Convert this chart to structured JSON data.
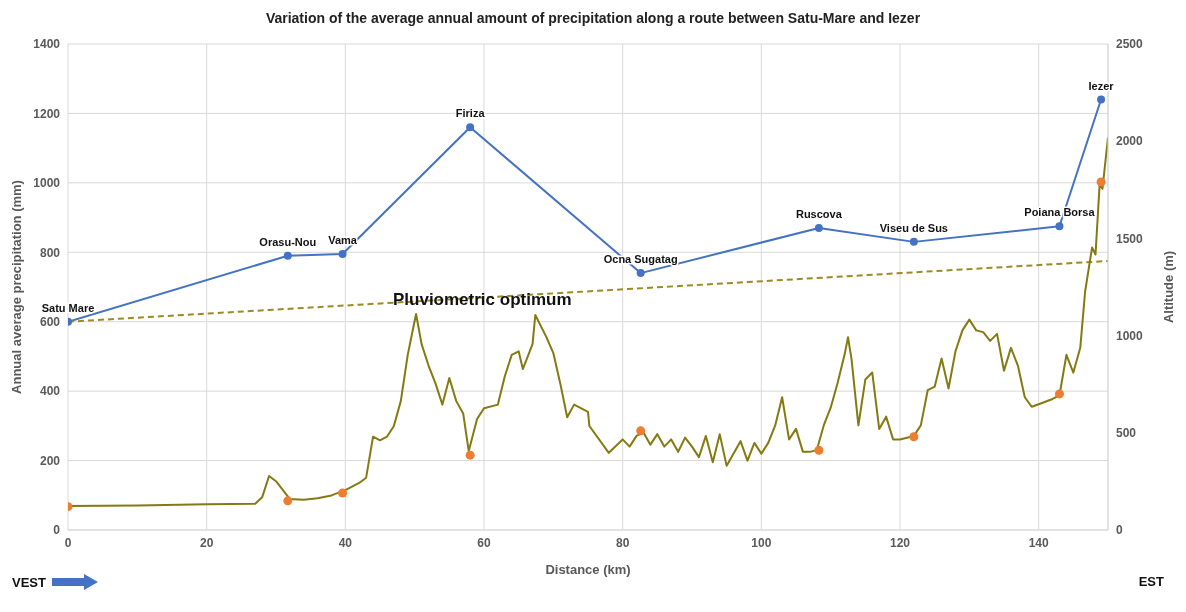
{
  "chart_data": {
    "type": "line",
    "title": "Variation of the average annual amount of precipitation along a route between Satu-Mare and Iezer",
    "xlabel": "Distance (km)",
    "ylabel": "Annual average precipitation (mm)",
    "y2label": "Altitude (m)",
    "xlim": [
      0,
      150
    ],
    "xticks": [
      0,
      20,
      40,
      60,
      80,
      100,
      120,
      140
    ],
    "ylim": [
      0,
      1400
    ],
    "yticks": [
      0,
      200,
      400,
      600,
      800,
      1000,
      1200,
      1400
    ],
    "y2lim": [
      0,
      2500
    ],
    "y2ticks": [
      0,
      500,
      1000,
      1500,
      2000,
      2500
    ],
    "grid": true,
    "series": [
      {
        "color": "#4472c4",
        "marker": "circle",
        "line_style": "solid",
        "x": [
          0,
          31.7,
          39.6,
          58,
          82.6,
          108.3,
          122,
          143,
          149
        ],
        "values": [
          600,
          790,
          795,
          1160,
          740,
          870,
          830,
          875,
          1240
        ]
      },
      {
        "type": "line",
        "color": "#9c8a22",
        "marker": "none",
        "line_style": "dashed",
        "x": [
          0,
          150
        ],
        "values": [
          600,
          775
        ]
      },
      {
        "type": "line",
        "axis": "y2",
        "color": "#857a12",
        "marker": "none",
        "line_style": "solid",
        "x": [
          0,
          10,
          20,
          27,
          28,
          29,
          30,
          31,
          32,
          34,
          36,
          38,
          40,
          42,
          43,
          44,
          45,
          46,
          47,
          48,
          49,
          50.2,
          51,
          52,
          53,
          54,
          55,
          56,
          57,
          57.8,
          59,
          60,
          62,
          63,
          64,
          65,
          65.6,
          67,
          67.4,
          69,
          70,
          71,
          72,
          73,
          75,
          75.2,
          78,
          80,
          81,
          82,
          83,
          84,
          85,
          86,
          87,
          88,
          89,
          90,
          91,
          92,
          93,
          94,
          95,
          96,
          97,
          98,
          99,
          100,
          101,
          102,
          103,
          104,
          105,
          106,
          107,
          108,
          109,
          110,
          111,
          112,
          112.5,
          113,
          114,
          115,
          116,
          117,
          118,
          119,
          120,
          122,
          123,
          124,
          125,
          126,
          127,
          128,
          129,
          130,
          131,
          132,
          133,
          134,
          135,
          136,
          137,
          138,
          139,
          140,
          142,
          143,
          144,
          145,
          146,
          146.7,
          147.7,
          148.2,
          148.8,
          149.2,
          150
        ],
        "values": [
          123,
          126,
          132,
          135,
          168,
          278,
          251,
          205,
          159,
          156,
          163,
          178,
          205,
          242,
          269,
          480,
          461,
          480,
          535,
          663,
          901,
          1111,
          956,
          846,
          754,
          645,
          782,
          663,
          599,
          406,
          571,
          626,
          645,
          791,
          901,
          919,
          828,
          956,
          1106,
          992,
          910,
          754,
          580,
          645,
          608,
          535,
          397,
          466,
          429,
          484,
          502,
          439,
          493,
          429,
          466,
          402,
          475,
          429,
          375,
          484,
          348,
          493,
          330,
          393,
          457,
          357,
          448,
          393,
          448,
          538,
          683,
          466,
          520,
          402,
          402,
          411,
          538,
          629,
          756,
          901,
          991,
          882,
          538,
          774,
          810,
          520,
          583,
          466,
          466,
          484,
          538,
          719,
          737,
          882,
          728,
          919,
          1027,
          1082,
          1027,
          1018,
          973,
          1009,
          819,
          937,
          846,
          683,
          634,
          647,
          674,
          692,
          901,
          810,
          937,
          1227,
          1453,
          1417,
          1782,
          1755,
          2019
        ]
      },
      {
        "type": "scatter",
        "axis": "y2",
        "color": "#ed7d31",
        "marker": "circle",
        "x": [
          0,
          31.7,
          39.6,
          58,
          82.6,
          108.3,
          122,
          143,
          149
        ],
        "values": [
          120,
          150,
          190,
          385,
          510,
          410,
          480,
          700,
          1790
        ]
      }
    ],
    "annotations": [
      {
        "text": "Satu Mare",
        "x": 0,
        "y": 600
      },
      {
        "text": "Orasu-Nou",
        "x": 31.7,
        "y": 790
      },
      {
        "text": "Vama",
        "x": 39.6,
        "y": 795
      },
      {
        "text": "Firiza",
        "x": 58,
        "y": 1160
      },
      {
        "text": "Ocna Sugatag",
        "x": 82.6,
        "y": 740
      },
      {
        "text": "Ruscova",
        "x": 108.3,
        "y": 870
      },
      {
        "text": "Viseu de Sus",
        "x": 122,
        "y": 830
      },
      {
        "text": "Poiana Borsa",
        "x": 143,
        "y": 875
      },
      {
        "text": "Iezer",
        "x": 149,
        "y": 1240
      },
      "Pluviometric optimum",
      "VEST",
      "EST"
    ]
  }
}
